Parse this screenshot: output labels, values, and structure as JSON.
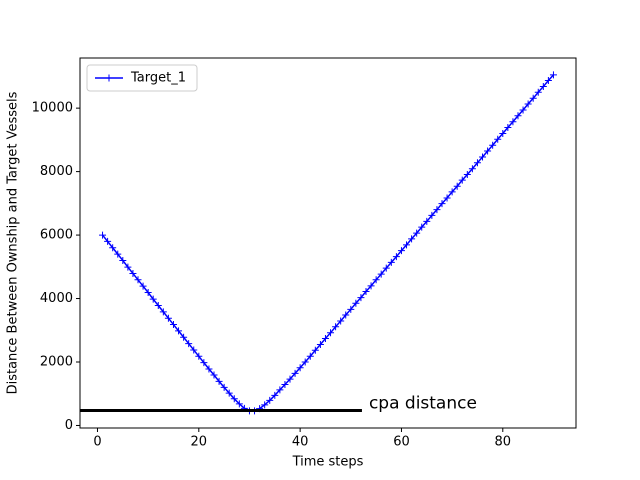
{
  "chart_data": {
    "type": "line",
    "xlabel": "Time steps",
    "ylabel": "Distance Between Ownship and Target Vessels",
    "x": [
      1,
      2,
      3,
      4,
      5,
      6,
      7,
      8,
      9,
      10,
      11,
      12,
      13,
      14,
      15,
      16,
      17,
      18,
      19,
      20,
      21,
      22,
      23,
      24,
      25,
      26,
      27,
      28,
      29,
      30,
      31,
      32,
      33,
      34,
      35,
      36,
      37,
      38,
      39,
      40,
      41,
      42,
      43,
      44,
      45,
      46,
      47,
      48,
      49,
      50,
      51,
      52,
      53,
      54,
      55,
      56,
      57,
      58,
      59,
      60,
      61,
      62,
      63,
      64,
      65,
      66,
      67,
      68,
      69,
      70,
      71,
      72,
      73,
      74,
      75,
      76,
      77,
      78,
      79,
      80,
      81,
      82,
      83,
      84,
      85,
      86,
      87,
      88,
      89,
      90
    ],
    "series": [
      {
        "name": "Target_1",
        "color": "#0000ff",
        "marker": "+",
        "values": [
          6000,
          5800,
          5600,
          5400,
          5200,
          4990,
          4790,
          4590,
          4390,
          4190,
          3980,
          3780,
          3580,
          3380,
          3180,
          2980,
          2780,
          2580,
          2380,
          2180,
          1980,
          1780,
          1590,
          1390,
          1200,
          1020,
          840,
          680,
          540,
          460,
          460,
          530,
          650,
          790,
          950,
          1120,
          1290,
          1460,
          1640,
          1820,
          2000,
          2180,
          2370,
          2550,
          2740,
          2920,
          3110,
          3290,
          3480,
          3660,
          3850,
          4030,
          4220,
          4400,
          4590,
          4770,
          4960,
          5140,
          5320,
          5510,
          5690,
          5880,
          6060,
          6250,
          6430,
          6620,
          6800,
          6990,
          7170,
          7360,
          7540,
          7730,
          7910,
          8090,
          8280,
          8460,
          8650,
          8830,
          9020,
          9200,
          9390,
          9570,
          9760,
          9940,
          10130,
          10310,
          10500,
          10680,
          10870,
          11050
        ]
      }
    ],
    "cpa_line": {
      "y": 470,
      "x": [
        -3.45,
        52.2
      ],
      "color": "#000000"
    },
    "annotation": "cpa distance",
    "xlim": [
      -3.45,
      94.45
    ],
    "ylim": [
      -80,
      11580
    ],
    "xticks": [
      0,
      20,
      40,
      60,
      80
    ],
    "yticks": [
      0,
      2000,
      4000,
      6000,
      8000,
      10000
    ],
    "grid": false,
    "legend": "upper left"
  }
}
